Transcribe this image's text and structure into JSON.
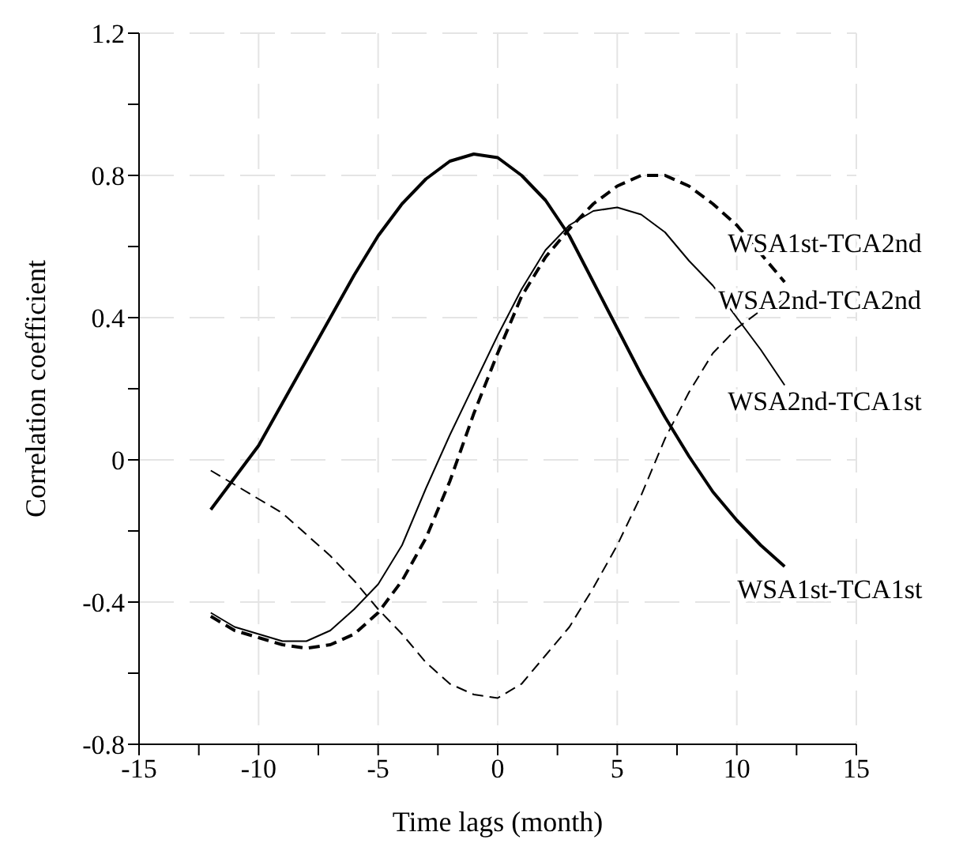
{
  "chart_data": {
    "type": "line",
    "xlabel": "Time lags (month)",
    "ylabel": "Correlation coefficient",
    "x": [
      -12,
      -11,
      -10,
      -9,
      -8,
      -7,
      -6,
      -5,
      -4,
      -3,
      -2,
      -1,
      0,
      1,
      2,
      3,
      4,
      5,
      6,
      7,
      8,
      9,
      10,
      11,
      12
    ],
    "series": [
      {
        "name": "WSA1st-TCA1st",
        "color": "#000000",
        "line_style": "solid",
        "values": [
          -0.14,
          -0.05,
          0.04,
          0.16,
          0.28,
          0.4,
          0.52,
          0.63,
          0.72,
          0.79,
          0.84,
          0.86,
          0.85,
          0.8,
          0.73,
          0.63,
          0.5,
          0.37,
          0.24,
          0.12,
          0.01,
          -0.09,
          -0.17,
          -0.24,
          -0.3
        ]
      },
      {
        "name": "WSA1st-TCA2nd",
        "color": "#000000",
        "line_style": "dashed",
        "values": [
          -0.44,
          -0.48,
          -0.5,
          -0.52,
          -0.53,
          -0.52,
          -0.49,
          -0.43,
          -0.34,
          -0.22,
          -0.06,
          0.13,
          0.3,
          0.46,
          0.57,
          0.65,
          0.72,
          0.77,
          0.8,
          0.8,
          0.77,
          0.72,
          0.66,
          0.58,
          0.5
        ]
      },
      {
        "name": "WSA2nd-TCA2nd",
        "color": "#000000",
        "line_style": "solid",
        "values": [
          -0.43,
          -0.47,
          -0.49,
          -0.51,
          -0.51,
          -0.48,
          -0.42,
          -0.35,
          -0.24,
          -0.08,
          0.07,
          0.21,
          0.35,
          0.48,
          0.59,
          0.66,
          0.7,
          0.71,
          0.69,
          0.64,
          0.56,
          0.49,
          0.4,
          0.31,
          0.21
        ]
      },
      {
        "name": "WSA2nd-TCA1st",
        "color": "#000000",
        "line_style": "dashed",
        "values": [
          -0.03,
          -0.07,
          -0.11,
          -0.15,
          -0.21,
          -0.27,
          -0.34,
          -0.42,
          -0.49,
          -0.57,
          -0.63,
          -0.66,
          -0.67,
          -0.63,
          -0.55,
          -0.47,
          -0.36,
          -0.24,
          -0.1,
          0.06,
          0.19,
          0.3,
          0.37,
          0.42,
          0.45
        ]
      }
    ],
    "xlim": [
      -15,
      15
    ],
    "xticks": [
      -15,
      {
        "value": -12.5,
        "label": null
      },
      -10,
      {
        "value": -7.5,
        "label": null
      },
      -5,
      {
        "value": -2.5,
        "label": null
      },
      0,
      {
        "value": 2.5,
        "label": null
      },
      5,
      {
        "value": 7.5,
        "label": null
      },
      10,
      {
        "value": 12.5,
        "label": null
      },
      15
    ],
    "ylim": [
      -0.8,
      1.2
    ],
    "yticks": [
      -0.8,
      {
        "value": -0.6,
        "label": null
      },
      -0.4,
      {
        "value": -0.2,
        "label": null
      },
      0,
      {
        "value": 0.2,
        "label": null
      },
      0.4,
      {
        "value": 0.6,
        "label": null
      },
      0.8,
      {
        "value": 1.0,
        "label": null
      },
      1.2
    ],
    "grid": true,
    "legend": false,
    "marker": "none"
  }
}
